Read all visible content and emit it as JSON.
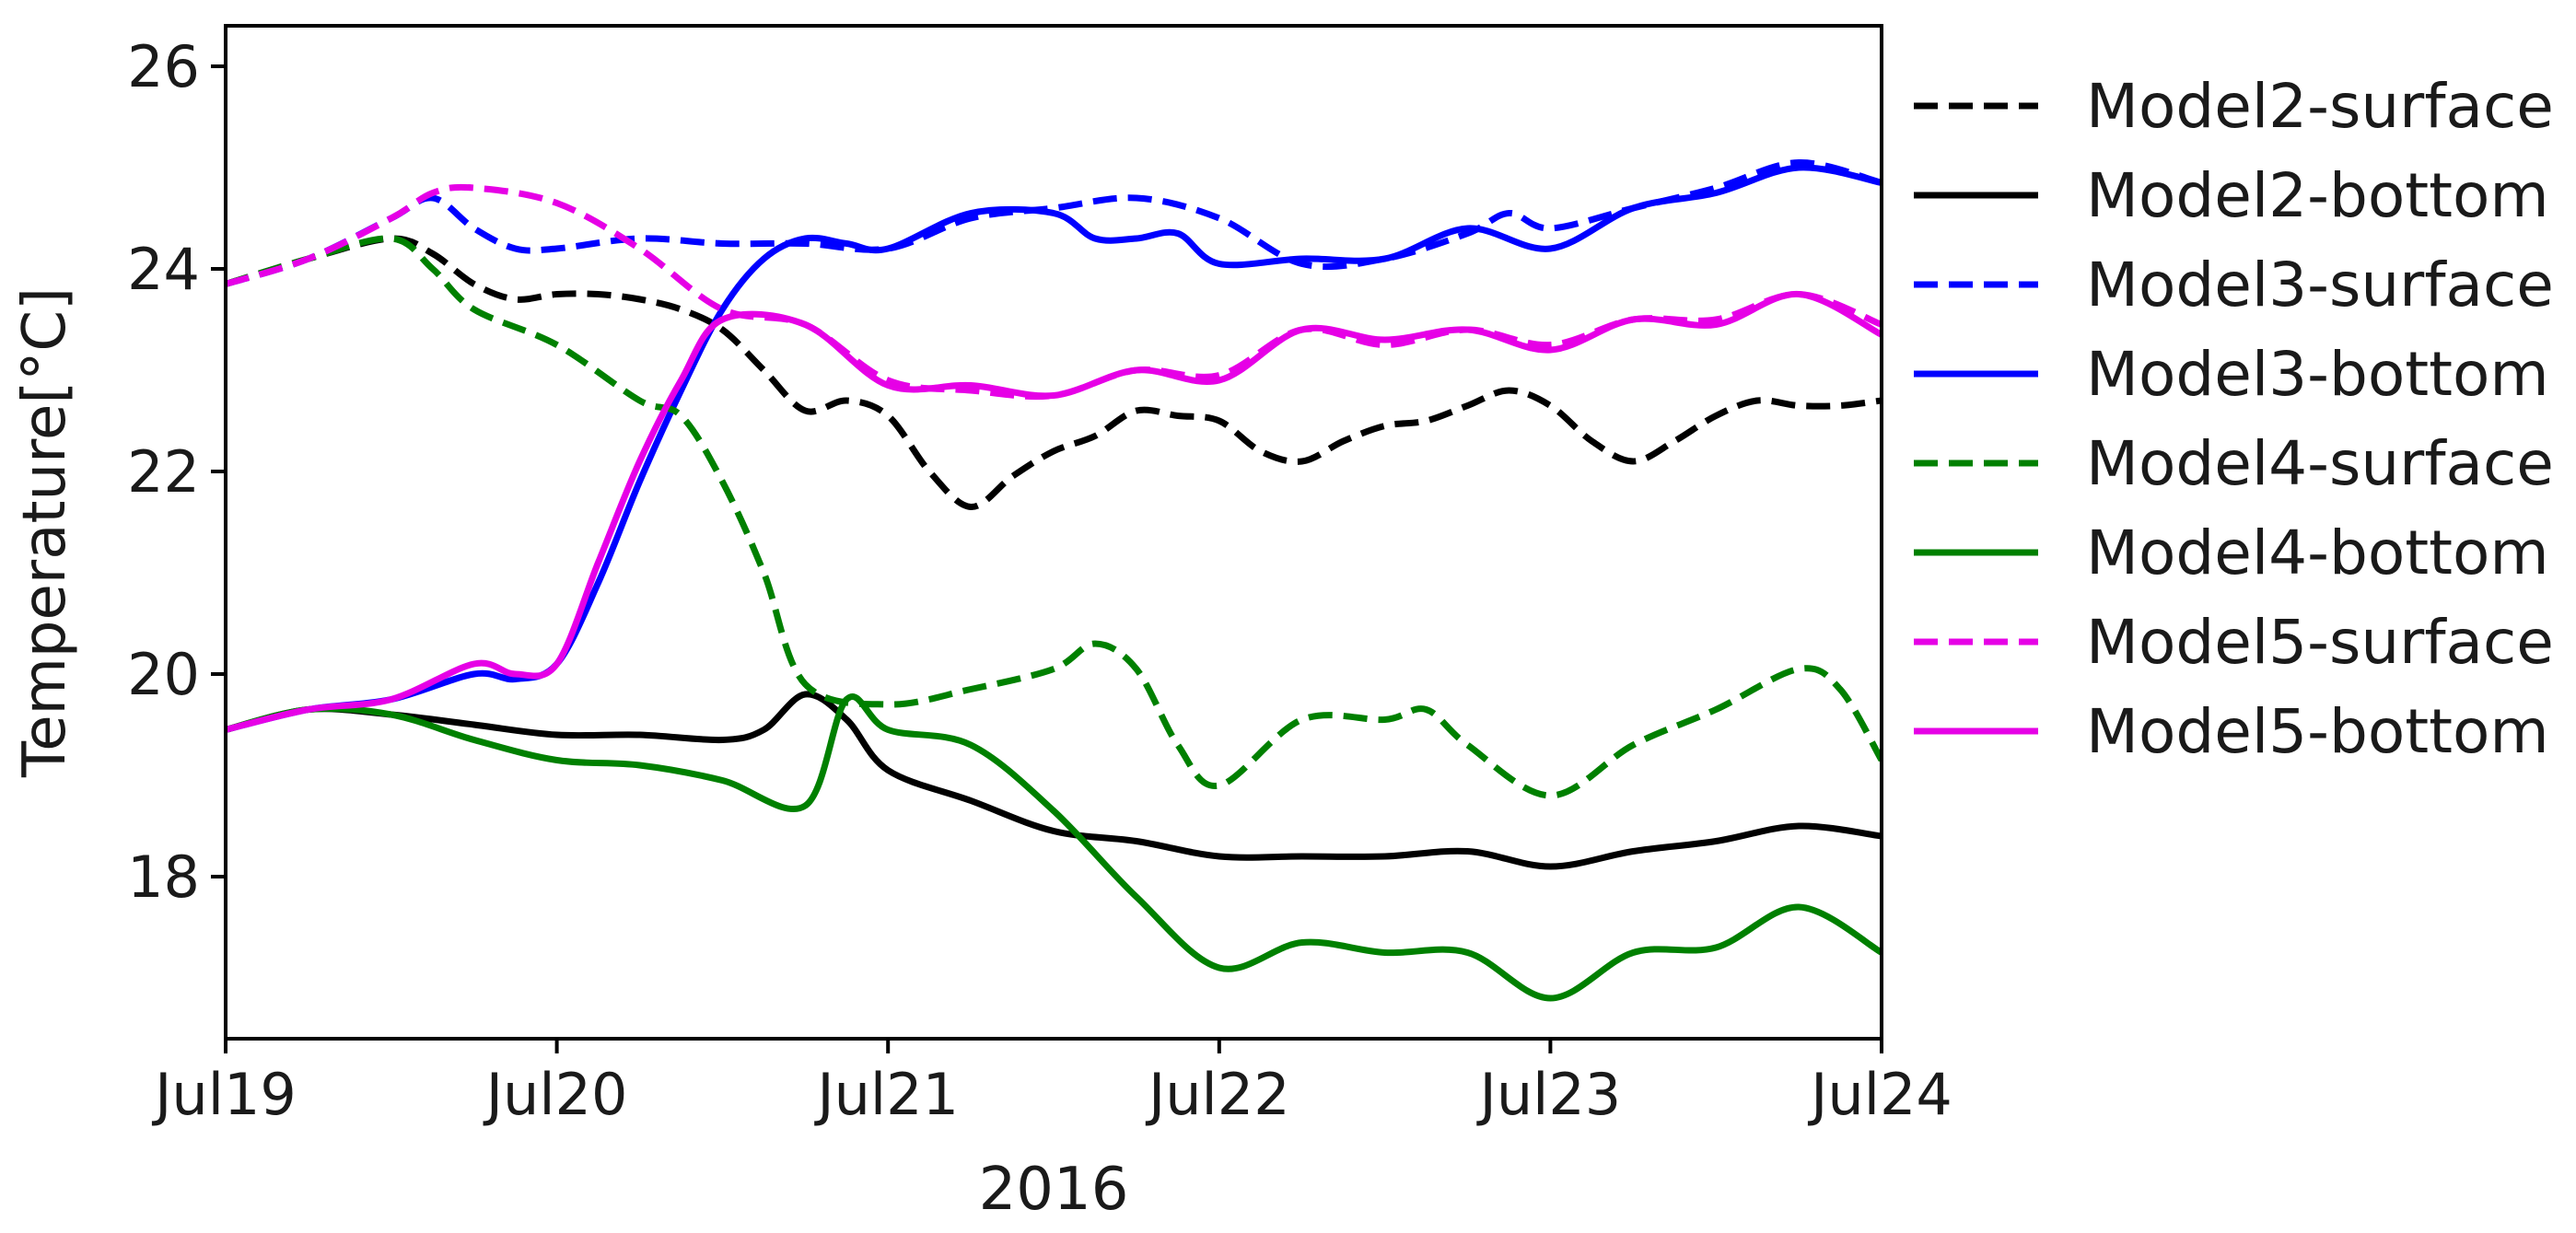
{
  "chart_data": {
    "type": "line",
    "xlabel": "2016",
    "ylabel": "Temperature[°C]",
    "x_ticks": [
      "Jul19",
      "Jul20",
      "Jul21",
      "Jul22",
      "Jul23",
      "Jul24"
    ],
    "y_ticks": [
      "18",
      "20",
      "22",
      "24",
      "26"
    ],
    "xlim": [
      "2016-07-19",
      "2016-07-24"
    ],
    "ylim": [
      16.4,
      26.4
    ],
    "grid": false,
    "legend_position": "right",
    "series": [
      {
        "name": "Model2-surface",
        "color": "#000000",
        "style": "dashed",
        "points": [
          [
            "2016-07-19 00:00",
            23.85
          ],
          [
            "2016-07-19 06:00",
            24.1
          ],
          [
            "2016-07-19 12:00",
            24.3
          ],
          [
            "2016-07-19 15:00",
            24.15
          ],
          [
            "2016-07-19 18:00",
            23.85
          ],
          [
            "2016-07-19 21:00",
            23.7
          ],
          [
            "2016-07-20 00:00",
            23.75
          ],
          [
            "2016-07-20 03:00",
            23.75
          ],
          [
            "2016-07-20 06:00",
            23.7
          ],
          [
            "2016-07-20 09:00",
            23.6
          ],
          [
            "2016-07-20 12:00",
            23.4
          ],
          [
            "2016-07-20 15:00",
            23.0
          ],
          [
            "2016-07-20 18:00",
            22.6
          ],
          [
            "2016-07-20 21:00",
            22.7
          ],
          [
            "2016-07-21 00:00",
            22.55
          ],
          [
            "2016-07-21 03:00",
            22.0
          ],
          [
            "2016-07-21 06:00",
            21.65
          ],
          [
            "2016-07-21 09:00",
            21.95
          ],
          [
            "2016-07-21 12:00",
            22.2
          ],
          [
            "2016-07-21 15:00",
            22.35
          ],
          [
            "2016-07-21 18:00",
            22.6
          ],
          [
            "2016-07-21 21:00",
            22.55
          ],
          [
            "2016-07-22 00:00",
            22.5
          ],
          [
            "2016-07-22 03:00",
            22.2
          ],
          [
            "2016-07-22 06:00",
            22.1
          ],
          [
            "2016-07-22 09:00",
            22.3
          ],
          [
            "2016-07-22 12:00",
            22.45
          ],
          [
            "2016-07-22 15:00",
            22.5
          ],
          [
            "2016-07-22 18:00",
            22.65
          ],
          [
            "2016-07-22 21:00",
            22.8
          ],
          [
            "2016-07-23 00:00",
            22.65
          ],
          [
            "2016-07-23 03:00",
            22.3
          ],
          [
            "2016-07-23 06:00",
            22.1
          ],
          [
            "2016-07-23 09:00",
            22.3
          ],
          [
            "2016-07-23 12:00",
            22.55
          ],
          [
            "2016-07-23 15:00",
            22.7
          ],
          [
            "2016-07-23 18:00",
            22.65
          ],
          [
            "2016-07-23 21:00",
            22.65
          ],
          [
            "2016-07-24 00:00",
            22.7
          ]
        ]
      },
      {
        "name": "Model2-bottom",
        "color": "#000000",
        "style": "solid",
        "points": [
          [
            "2016-07-19 00:00",
            19.45
          ],
          [
            "2016-07-19 06:00",
            19.65
          ],
          [
            "2016-07-19 12:00",
            19.6
          ],
          [
            "2016-07-19 18:00",
            19.5
          ],
          [
            "2016-07-20 00:00",
            19.4
          ],
          [
            "2016-07-20 06:00",
            19.4
          ],
          [
            "2016-07-20 12:00",
            19.35
          ],
          [
            "2016-07-20 15:00",
            19.45
          ],
          [
            "2016-07-20 18:00",
            19.8
          ],
          [
            "2016-07-20 21:00",
            19.55
          ],
          [
            "2016-07-21 00:00",
            19.05
          ],
          [
            "2016-07-21 06:00",
            18.75
          ],
          [
            "2016-07-21 12:00",
            18.45
          ],
          [
            "2016-07-21 18:00",
            18.35
          ],
          [
            "2016-07-22 00:00",
            18.2
          ],
          [
            "2016-07-22 06:00",
            18.2
          ],
          [
            "2016-07-22 12:00",
            18.2
          ],
          [
            "2016-07-22 18:00",
            18.25
          ],
          [
            "2016-07-23 00:00",
            18.1
          ],
          [
            "2016-07-23 06:00",
            18.25
          ],
          [
            "2016-07-23 12:00",
            18.35
          ],
          [
            "2016-07-23 18:00",
            18.5
          ],
          [
            "2016-07-24 00:00",
            18.4
          ]
        ]
      },
      {
        "name": "Model3-surface",
        "color": "#0000ff",
        "style": "dashed",
        "points": [
          [
            "2016-07-19 00:00",
            23.85
          ],
          [
            "2016-07-19 06:00",
            24.1
          ],
          [
            "2016-07-19 12:00",
            24.5
          ],
          [
            "2016-07-19 15:00",
            24.7
          ],
          [
            "2016-07-19 18:00",
            24.4
          ],
          [
            "2016-07-19 21:00",
            24.2
          ],
          [
            "2016-07-20 00:00",
            24.2
          ],
          [
            "2016-07-20 06:00",
            24.3
          ],
          [
            "2016-07-20 12:00",
            24.25
          ],
          [
            "2016-07-20 18:00",
            24.25
          ],
          [
            "2016-07-21 00:00",
            24.2
          ],
          [
            "2016-07-21 06:00",
            24.5
          ],
          [
            "2016-07-21 12:00",
            24.6
          ],
          [
            "2016-07-21 18:00",
            24.7
          ],
          [
            "2016-07-22 00:00",
            24.5
          ],
          [
            "2016-07-22 06:00",
            24.05
          ],
          [
            "2016-07-22 12:00",
            24.1
          ],
          [
            "2016-07-22 18:00",
            24.35
          ],
          [
            "2016-07-22 21:00",
            24.55
          ],
          [
            "2016-07-23 00:00",
            24.4
          ],
          [
            "2016-07-23 06:00",
            24.6
          ],
          [
            "2016-07-23 12:00",
            24.8
          ],
          [
            "2016-07-23 18:00",
            25.05
          ],
          [
            "2016-07-24 00:00",
            24.85
          ]
        ]
      },
      {
        "name": "Model3-bottom",
        "color": "#0000ff",
        "style": "solid",
        "points": [
          [
            "2016-07-19 00:00",
            19.45
          ],
          [
            "2016-07-19 06:00",
            19.65
          ],
          [
            "2016-07-19 12:00",
            19.75
          ],
          [
            "2016-07-19 18:00",
            20.0
          ],
          [
            "2016-07-19 21:00",
            19.95
          ],
          [
            "2016-07-20 00:00",
            20.1
          ],
          [
            "2016-07-20 03:00",
            20.9
          ],
          [
            "2016-07-20 06:00",
            21.9
          ],
          [
            "2016-07-20 09:00",
            22.8
          ],
          [
            "2016-07-20 12:00",
            23.6
          ],
          [
            "2016-07-20 15:00",
            24.1
          ],
          [
            "2016-07-20 18:00",
            24.3
          ],
          [
            "2016-07-20 21:00",
            24.25
          ],
          [
            "2016-07-21 00:00",
            24.2
          ],
          [
            "2016-07-21 06:00",
            24.55
          ],
          [
            "2016-07-21 12:00",
            24.55
          ],
          [
            "2016-07-21 15:00",
            24.3
          ],
          [
            "2016-07-21 18:00",
            24.3
          ],
          [
            "2016-07-21 21:00",
            24.35
          ],
          [
            "2016-07-22 00:00",
            24.05
          ],
          [
            "2016-07-22 06:00",
            24.1
          ],
          [
            "2016-07-22 12:00",
            24.1
          ],
          [
            "2016-07-22 18:00",
            24.4
          ],
          [
            "2016-07-23 00:00",
            24.2
          ],
          [
            "2016-07-23 06:00",
            24.6
          ],
          [
            "2016-07-23 12:00",
            24.75
          ],
          [
            "2016-07-23 18:00",
            25.0
          ],
          [
            "2016-07-24 00:00",
            24.85
          ]
        ]
      },
      {
        "name": "Model4-surface",
        "color": "#008000",
        "style": "dashed",
        "points": [
          [
            "2016-07-19 00:00",
            23.85
          ],
          [
            "2016-07-19 06:00",
            24.1
          ],
          [
            "2016-07-19 12:00",
            24.3
          ],
          [
            "2016-07-19 15:00",
            24.0
          ],
          [
            "2016-07-19 18:00",
            23.6
          ],
          [
            "2016-07-20 00:00",
            23.25
          ],
          [
            "2016-07-20 06:00",
            22.7
          ],
          [
            "2016-07-20 09:00",
            22.55
          ],
          [
            "2016-07-20 12:00",
            21.9
          ],
          [
            "2016-07-20 15:00",
            21.0
          ],
          [
            "2016-07-20 18:00",
            19.9
          ],
          [
            "2016-07-21 00:00",
            19.7
          ],
          [
            "2016-07-21 06:00",
            19.85
          ],
          [
            "2016-07-21 12:00",
            20.05
          ],
          [
            "2016-07-21 15:00",
            20.3
          ],
          [
            "2016-07-21 18:00",
            20.05
          ],
          [
            "2016-07-21 21:00",
            19.3
          ],
          [
            "2016-07-22 00:00",
            18.9
          ],
          [
            "2016-07-22 06:00",
            19.55
          ],
          [
            "2016-07-22 12:00",
            19.55
          ],
          [
            "2016-07-22 15:00",
            19.65
          ],
          [
            "2016-07-22 18:00",
            19.3
          ],
          [
            "2016-07-23 00:00",
            18.8
          ],
          [
            "2016-07-23 06:00",
            19.3
          ],
          [
            "2016-07-23 12:00",
            19.65
          ],
          [
            "2016-07-23 18:00",
            20.05
          ],
          [
            "2016-07-23 21:00",
            19.85
          ],
          [
            "2016-07-24 00:00",
            19.15
          ]
        ]
      },
      {
        "name": "Model4-bottom",
        "color": "#008000",
        "style": "solid",
        "points": [
          [
            "2016-07-19 00:00",
            19.45
          ],
          [
            "2016-07-19 06:00",
            19.65
          ],
          [
            "2016-07-19 12:00",
            19.6
          ],
          [
            "2016-07-19 18:00",
            19.35
          ],
          [
            "2016-07-20 00:00",
            19.15
          ],
          [
            "2016-07-20 06:00",
            19.1
          ],
          [
            "2016-07-20 12:00",
            18.95
          ],
          [
            "2016-07-20 18:00",
            18.7
          ],
          [
            "2016-07-20 21:00",
            19.75
          ],
          [
            "2016-07-21 00:00",
            19.45
          ],
          [
            "2016-07-21 06:00",
            19.3
          ],
          [
            "2016-07-21 12:00",
            18.65
          ],
          [
            "2016-07-21 18:00",
            17.8
          ],
          [
            "2016-07-22 00:00",
            17.1
          ],
          [
            "2016-07-22 06:00",
            17.35
          ],
          [
            "2016-07-22 12:00",
            17.25
          ],
          [
            "2016-07-22 18:00",
            17.25
          ],
          [
            "2016-07-23 00:00",
            16.8
          ],
          [
            "2016-07-23 06:00",
            17.25
          ],
          [
            "2016-07-23 12:00",
            17.3
          ],
          [
            "2016-07-23 18:00",
            17.7
          ],
          [
            "2016-07-24 00:00",
            17.25
          ]
        ]
      },
      {
        "name": "Model5-surface",
        "color": "#e600e6",
        "style": "dashed",
        "points": [
          [
            "2016-07-19 00:00",
            23.85
          ],
          [
            "2016-07-19 06:00",
            24.1
          ],
          [
            "2016-07-19 12:00",
            24.5
          ],
          [
            "2016-07-19 15:00",
            24.75
          ],
          [
            "2016-07-19 18:00",
            24.8
          ],
          [
            "2016-07-20 00:00",
            24.65
          ],
          [
            "2016-07-20 06:00",
            24.2
          ],
          [
            "2016-07-20 12:00",
            23.6
          ],
          [
            "2016-07-20 18:00",
            23.45
          ],
          [
            "2016-07-21 00:00",
            22.9
          ],
          [
            "2016-07-21 06:00",
            22.8
          ],
          [
            "2016-07-21 12:00",
            22.75
          ],
          [
            "2016-07-21 18:00",
            23.0
          ],
          [
            "2016-07-22 00:00",
            22.95
          ],
          [
            "2016-07-22 06:00",
            23.4
          ],
          [
            "2016-07-22 12:00",
            23.25
          ],
          [
            "2016-07-22 18:00",
            23.4
          ],
          [
            "2016-07-23 00:00",
            23.25
          ],
          [
            "2016-07-23 06:00",
            23.5
          ],
          [
            "2016-07-23 12:00",
            23.5
          ],
          [
            "2016-07-23 18:00",
            23.75
          ],
          [
            "2016-07-24 00:00",
            23.45
          ]
        ]
      },
      {
        "name": "Model5-bottom",
        "color": "#e600e6",
        "style": "solid",
        "points": [
          [
            "2016-07-19 00:00",
            19.45
          ],
          [
            "2016-07-19 06:00",
            19.65
          ],
          [
            "2016-07-19 12:00",
            19.75
          ],
          [
            "2016-07-19 18:00",
            20.1
          ],
          [
            "2016-07-19 21:00",
            20.0
          ],
          [
            "2016-07-20 00:00",
            20.1
          ],
          [
            "2016-07-20 03:00",
            21.1
          ],
          [
            "2016-07-20 06:00",
            22.1
          ],
          [
            "2016-07-20 09:00",
            22.9
          ],
          [
            "2016-07-20 12:00",
            23.5
          ],
          [
            "2016-07-20 18:00",
            23.45
          ],
          [
            "2016-07-21 00:00",
            22.85
          ],
          [
            "2016-07-21 06:00",
            22.85
          ],
          [
            "2016-07-21 12:00",
            22.75
          ],
          [
            "2016-07-21 18:00",
            23.0
          ],
          [
            "2016-07-22 00:00",
            22.9
          ],
          [
            "2016-07-22 06:00",
            23.4
          ],
          [
            "2016-07-22 12:00",
            23.3
          ],
          [
            "2016-07-22 18:00",
            23.4
          ],
          [
            "2016-07-23 00:00",
            23.2
          ],
          [
            "2016-07-23 06:00",
            23.5
          ],
          [
            "2016-07-23 12:00",
            23.45
          ],
          [
            "2016-07-23 18:00",
            23.75
          ],
          [
            "2016-07-24 00:00",
            23.35
          ]
        ]
      }
    ]
  }
}
